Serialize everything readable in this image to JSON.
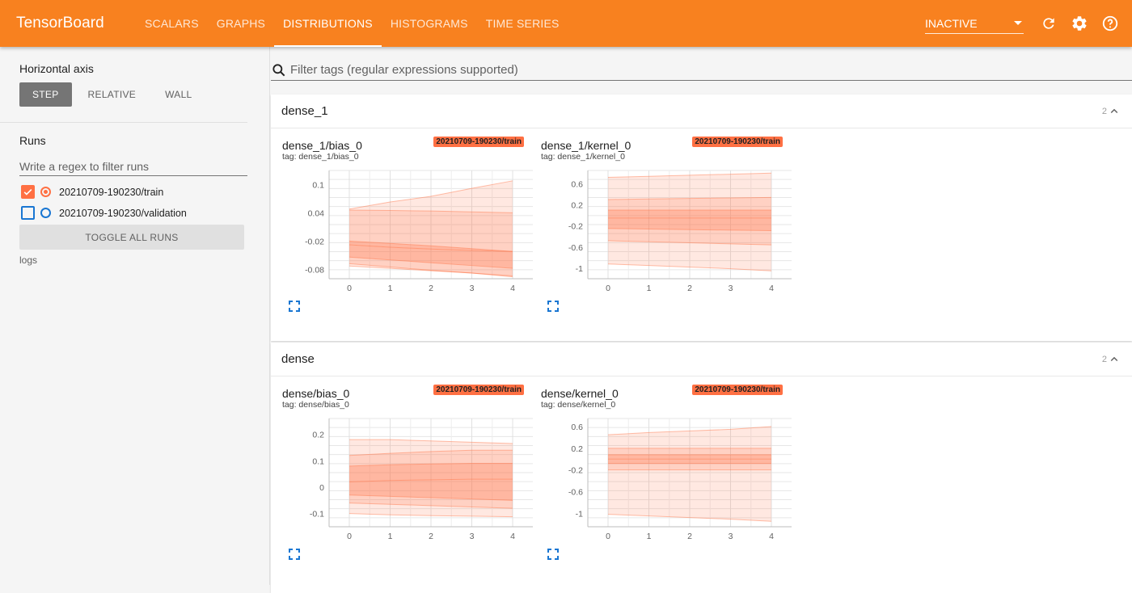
{
  "app": {
    "title": "TensorBoard"
  },
  "tabs": [
    {
      "label": "SCALARS"
    },
    {
      "label": "GRAPHS"
    },
    {
      "label": "DISTRIBUTIONS"
    },
    {
      "label": "HISTOGRAMS"
    },
    {
      "label": "TIME SERIES"
    }
  ],
  "active_tab": "DISTRIBUTIONS",
  "status_select": {
    "value": "INACTIVE"
  },
  "icons": {
    "refresh": "refresh-icon",
    "settings": "gear-icon",
    "help": "help-icon",
    "search": "search-icon",
    "expand": "fullscreen-icon",
    "collapse": "chevron-up-icon"
  },
  "colors": {
    "topbar": "#f8811f",
    "run_train": "#ff7043",
    "run_validation": "#1976d2"
  },
  "sidebar": {
    "horizontal_axis_label": "Horizontal axis",
    "axis_buttons": [
      {
        "label": "STEP"
      },
      {
        "label": "RELATIVE"
      },
      {
        "label": "WALL"
      }
    ],
    "axis_selected": "STEP",
    "runs_label": "Runs",
    "runs_filter_placeholder": "Write a regex to filter runs",
    "runs": [
      {
        "name": "20210709-190230/train",
        "checked": true
      },
      {
        "name": "20210709-190230/validation",
        "checked": false
      }
    ],
    "toggle_all_label": "TOGGLE ALL RUNS",
    "logdir_label": "logs"
  },
  "main": {
    "tag_filter_placeholder": "Filter tags (regular expressions supported)",
    "groups": [
      {
        "name": "dense_1",
        "count": "2",
        "cards": [
          {
            "title": "dense_1/bias_0",
            "tag": "tag: dense_1/bias_0",
            "run": "20210709-190230/train"
          },
          {
            "title": "dense_1/kernel_0",
            "tag": "tag: dense_1/kernel_0",
            "run": "20210709-190230/train"
          }
        ]
      },
      {
        "name": "dense",
        "count": "2",
        "cards": [
          {
            "title": "dense/bias_0",
            "tag": "tag: dense/bias_0",
            "run": "20210709-190230/train"
          },
          {
            "title": "dense/kernel_0",
            "tag": "tag: dense/kernel_0",
            "run": "20210709-190230/train"
          }
        ]
      }
    ]
  },
  "chart_data": [
    {
      "type": "area",
      "tag": "dense_1/bias_0",
      "x": [
        0,
        1,
        2,
        3,
        4
      ],
      "xticks": [
        "0",
        "1",
        "2",
        "3",
        "4"
      ],
      "yticks": [
        0.1,
        0.04,
        -0.02,
        -0.08
      ],
      "ytick_labels": [
        "0.1",
        "0.04",
        "-0.02",
        "-0.08"
      ],
      "ylim": [
        -0.1,
        0.13
      ],
      "percentile_bands": [
        [
          0.048,
          0.063,
          0.075,
          0.092,
          0.108
        ],
        [
          0.046,
          0.045,
          0.044,
          0.042,
          0.04
        ],
        [
          -0.02,
          -0.025,
          -0.03,
          -0.036,
          -0.042
        ],
        [
          -0.028,
          -0.033,
          -0.037,
          -0.04,
          -0.042
        ],
        [
          -0.054,
          -0.06,
          -0.066,
          -0.072,
          -0.078
        ],
        [
          -0.068,
          -0.075,
          -0.082,
          -0.088,
          -0.094
        ],
        [
          -0.073,
          -0.078,
          -0.083,
          -0.088,
          -0.096
        ]
      ]
    },
    {
      "type": "area",
      "tag": "dense_1/kernel_0",
      "x": [
        0,
        1,
        2,
        3,
        4
      ],
      "xticks": [
        "0",
        "1",
        "2",
        "3",
        "4"
      ],
      "yticks": [
        0.6,
        0.2,
        -0.2,
        -0.6,
        -1
      ],
      "ytick_labels": [
        "0.6",
        "0.2",
        "-0.2",
        "-0.6",
        "-1"
      ],
      "ylim": [
        -1.2,
        0.85
      ],
      "percentile_bands": [
        [
          0.72,
          0.74,
          0.76,
          0.78,
          0.8
        ],
        [
          0.3,
          0.31,
          0.32,
          0.33,
          0.34
        ],
        [
          0.1,
          0.1,
          0.1,
          0.1,
          0.1
        ],
        [
          -0.05,
          -0.05,
          -0.05,
          -0.05,
          -0.05
        ],
        [
          -0.25,
          -0.26,
          -0.27,
          -0.28,
          -0.29
        ],
        [
          -0.48,
          -0.5,
          -0.52,
          -0.54,
          -0.56
        ],
        [
          -0.92,
          -0.95,
          -0.98,
          -1.01,
          -1.05
        ]
      ]
    },
    {
      "type": "area",
      "tag": "dense/bias_0",
      "x": [
        0,
        1,
        2,
        3,
        4
      ],
      "xticks": [
        "0",
        "1",
        "2",
        "3",
        "4"
      ],
      "yticks": [
        0.2,
        0.1,
        0,
        -0.1
      ],
      "ytick_labels": [
        "0.2",
        "0.1",
        "0",
        "-0.1"
      ],
      "ylim": [
        -0.15,
        0.26
      ],
      "percentile_bands": [
        [
          0.18,
          0.18,
          0.175,
          0.17,
          0.165
        ],
        [
          0.12,
          0.128,
          0.135,
          0.14,
          0.14
        ],
        [
          0.08,
          0.085,
          0.088,
          0.09,
          0.09
        ],
        [
          0.02,
          0.025,
          0.028,
          0.03,
          0.03
        ],
        [
          -0.03,
          -0.035,
          -0.04,
          -0.045,
          -0.05
        ],
        [
          -0.06,
          -0.065,
          -0.07,
          -0.075,
          -0.08
        ],
        [
          -0.1,
          -0.105,
          -0.108,
          -0.11,
          -0.112
        ]
      ]
    },
    {
      "type": "area",
      "tag": "dense/kernel_0",
      "x": [
        0,
        1,
        2,
        3,
        4
      ],
      "xticks": [
        "0",
        "1",
        "2",
        "3",
        "4"
      ],
      "yticks": [
        0.6,
        0.2,
        -0.2,
        -0.6,
        -1
      ],
      "ytick_labels": [
        "0.6",
        "0.2",
        "-0.2",
        "-0.6",
        "-1"
      ],
      "ylim": [
        -1.25,
        0.75
      ],
      "percentile_bands": [
        [
          0.45,
          0.49,
          0.52,
          0.55,
          0.6
        ],
        [
          0.2,
          0.2,
          0.2,
          0.2,
          0.2
        ],
        [
          0.08,
          0.08,
          0.08,
          0.08,
          0.08
        ],
        [
          0.0,
          0.0,
          0.0,
          0.0,
          0.0
        ],
        [
          -0.08,
          -0.08,
          -0.08,
          -0.08,
          -0.08
        ],
        [
          -0.2,
          -0.2,
          -0.2,
          -0.2,
          -0.2
        ],
        [
          -1.02,
          -1.05,
          -1.08,
          -1.11,
          -1.15
        ]
      ]
    }
  ]
}
